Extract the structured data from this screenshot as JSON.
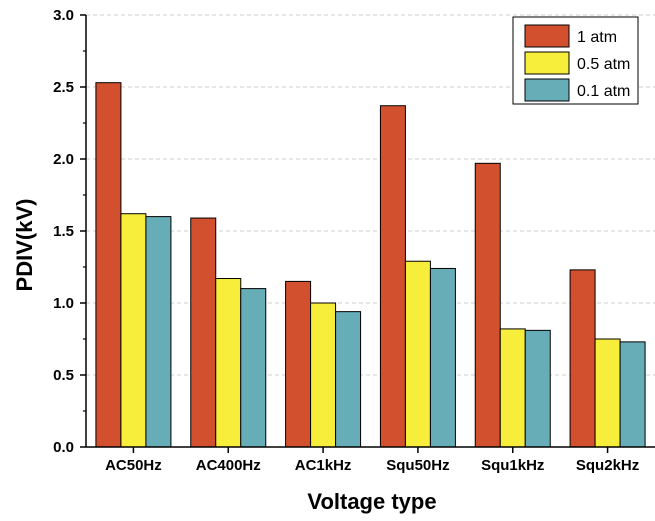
{
  "chart_data": {
    "type": "bar",
    "title": "",
    "xlabel": "Voltage type",
    "ylabel": "PDIV(kV)",
    "ylim": [
      0,
      3.0
    ],
    "y_ticks": [
      "0.0",
      "0.5",
      "1.0",
      "1.5",
      "2.0",
      "2.5",
      "3.0"
    ],
    "grid": "horizontal dashed",
    "legend_position": "top-right",
    "categories": [
      "AC50Hz",
      "AC400Hz",
      "AC1kHz",
      "Squ50Hz",
      "Squ1kHz",
      "Squ2kHz"
    ],
    "series": [
      {
        "name": "1 atm",
        "color": "#d2502d",
        "values": [
          2.53,
          1.59,
          1.15,
          2.37,
          1.97,
          1.23
        ]
      },
      {
        "name": "0.5 atm",
        "color": "#f7ee3c",
        "values": [
          1.62,
          1.17,
          1.0,
          1.29,
          0.82,
          0.75
        ]
      },
      {
        "name": "0.1 atm",
        "color": "#67adb8",
        "values": [
          1.6,
          1.1,
          0.94,
          1.24,
          0.81,
          0.73
        ]
      }
    ]
  }
}
